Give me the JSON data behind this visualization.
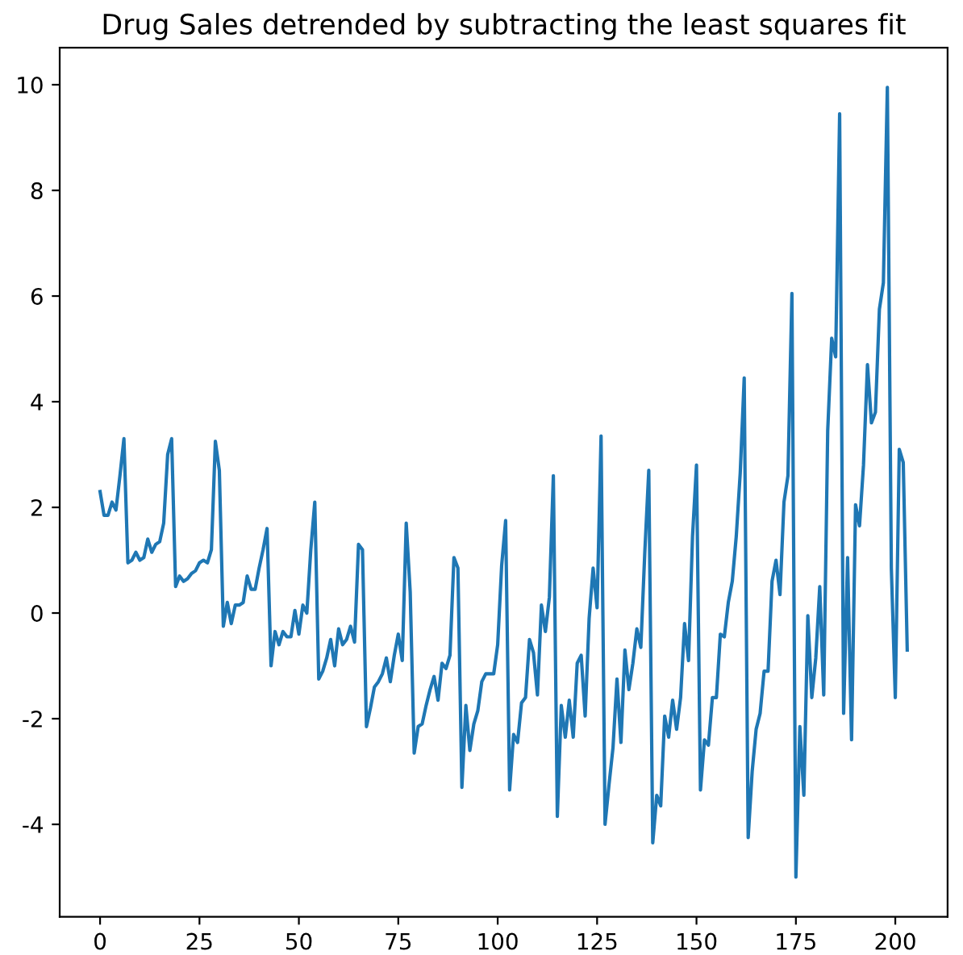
{
  "chart_data": {
    "type": "line",
    "title": "Drug Sales detrended by subtracting the least squares fit",
    "xlim": [
      -10.15,
      213.15
    ],
    "ylim": [
      -5.75,
      10.7
    ],
    "xticks": [
      0,
      25,
      50,
      75,
      100,
      125,
      150,
      175,
      200
    ],
    "yticks": [
      -4,
      -2,
      0,
      2,
      4,
      6,
      8,
      10
    ],
    "grid": false,
    "legend": false,
    "series": [
      {
        "color": "#1f77b4",
        "x": [
          0,
          1,
          2,
          3,
          4,
          5,
          6,
          7,
          8,
          9,
          10,
          11,
          12,
          13,
          14,
          15,
          16,
          17,
          18,
          19,
          20,
          21,
          22,
          23,
          24,
          25,
          26,
          27,
          28,
          29,
          30,
          31,
          32,
          33,
          34,
          35,
          36,
          37,
          38,
          39,
          40,
          41,
          42,
          43,
          44,
          45,
          46,
          47,
          48,
          49,
          50,
          51,
          52,
          53,
          54,
          55,
          56,
          57,
          58,
          59,
          60,
          61,
          62,
          63,
          64,
          65,
          66,
          67,
          68,
          69,
          70,
          71,
          72,
          73,
          74,
          75,
          76,
          77,
          78,
          79,
          80,
          81,
          82,
          83,
          84,
          85,
          86,
          87,
          88,
          89,
          90,
          91,
          92,
          93,
          94,
          95,
          96,
          97,
          98,
          99,
          100,
          101,
          102,
          103,
          104,
          105,
          106,
          107,
          108,
          109,
          110,
          111,
          112,
          113,
          114,
          115,
          116,
          117,
          118,
          119,
          120,
          121,
          122,
          123,
          124,
          125,
          126,
          127,
          128,
          129,
          130,
          131,
          132,
          133,
          134,
          135,
          136,
          137,
          138,
          139,
          140,
          141,
          142,
          143,
          144,
          145,
          146,
          147,
          148,
          149,
          150,
          151,
          152,
          153,
          154,
          155,
          156,
          157,
          158,
          159,
          160,
          161,
          162,
          163,
          164,
          165,
          166,
          167,
          168,
          169,
          170,
          171,
          172,
          173,
          174,
          175,
          176,
          177,
          178,
          179,
          180,
          181,
          182,
          183,
          184,
          185,
          186,
          187,
          188,
          189,
          190,
          191,
          192,
          193,
          194,
          195,
          196,
          197,
          198,
          199,
          200,
          201,
          202,
          203
        ],
        "values": [
          2.3,
          1.85,
          1.85,
          2.1,
          1.95,
          2.6,
          3.3,
          0.95,
          1.0,
          1.15,
          1.0,
          1.05,
          1.4,
          1.15,
          1.3,
          1.35,
          1.7,
          3.0,
          3.3,
          0.5,
          0.7,
          0.6,
          0.65,
          0.75,
          0.8,
          0.95,
          1.0,
          0.95,
          1.2,
          3.25,
          2.7,
          -0.25,
          0.2,
          -0.2,
          0.15,
          0.15,
          0.2,
          0.7,
          0.45,
          0.45,
          0.85,
          1.2,
          1.6,
          -1.0,
          -0.35,
          -0.6,
          -0.35,
          -0.45,
          -0.45,
          0.05,
          -0.4,
          0.15,
          0.0,
          1.2,
          2.1,
          -1.25,
          -1.1,
          -0.85,
          -0.5,
          -1.0,
          -0.3,
          -0.6,
          -0.5,
          -0.25,
          -0.55,
          1.3,
          1.2,
          -2.15,
          -1.8,
          -1.4,
          -1.3,
          -1.15,
          -0.85,
          -1.3,
          -0.8,
          -0.4,
          -0.9,
          1.7,
          0.4,
          -2.65,
          -2.15,
          -2.1,
          -1.75,
          -1.45,
          -1.2,
          -1.65,
          -0.95,
          -1.05,
          -0.8,
          1.05,
          0.85,
          -3.3,
          -1.75,
          -2.6,
          -2.1,
          -1.85,
          -1.3,
          -1.15,
          -1.15,
          -1.15,
          -0.6,
          0.9,
          1.75,
          -3.35,
          -2.3,
          -2.45,
          -1.7,
          -1.6,
          -0.5,
          -0.75,
          -1.55,
          0.15,
          -0.35,
          0.3,
          2.6,
          -3.85,
          -1.75,
          -2.35,
          -1.65,
          -2.35,
          -0.95,
          -0.8,
          -1.95,
          -0.1,
          0.85,
          0.1,
          3.35,
          -4.0,
          -3.25,
          -2.55,
          -1.25,
          -2.45,
          -0.7,
          -1.45,
          -0.95,
          -0.3,
          -0.65,
          1.15,
          2.7,
          -4.35,
          -3.45,
          -3.65,
          -1.95,
          -2.35,
          -1.65,
          -2.2,
          -1.6,
          -0.2,
          -0.9,
          1.45,
          2.8,
          -3.35,
          -2.4,
          -2.5,
          -1.6,
          -1.6,
          -0.4,
          -0.45,
          0.2,
          0.6,
          1.45,
          2.65,
          4.45,
          -4.25,
          -3.0,
          -2.2,
          -1.9,
          -1.1,
          -1.1,
          0.6,
          1.0,
          0.35,
          2.1,
          2.6,
          6.05,
          -5.0,
          -2.15,
          -3.45,
          -0.05,
          -1.6,
          -0.85,
          0.5,
          -1.55,
          3.45,
          5.2,
          4.85,
          9.45,
          -1.9,
          1.05,
          -2.4,
          2.05,
          1.65,
          2.8,
          4.7,
          3.6,
          3.8,
          5.75,
          6.25,
          9.95,
          0.85,
          -1.6,
          3.1,
          2.85,
          -0.7
        ]
      }
    ]
  }
}
